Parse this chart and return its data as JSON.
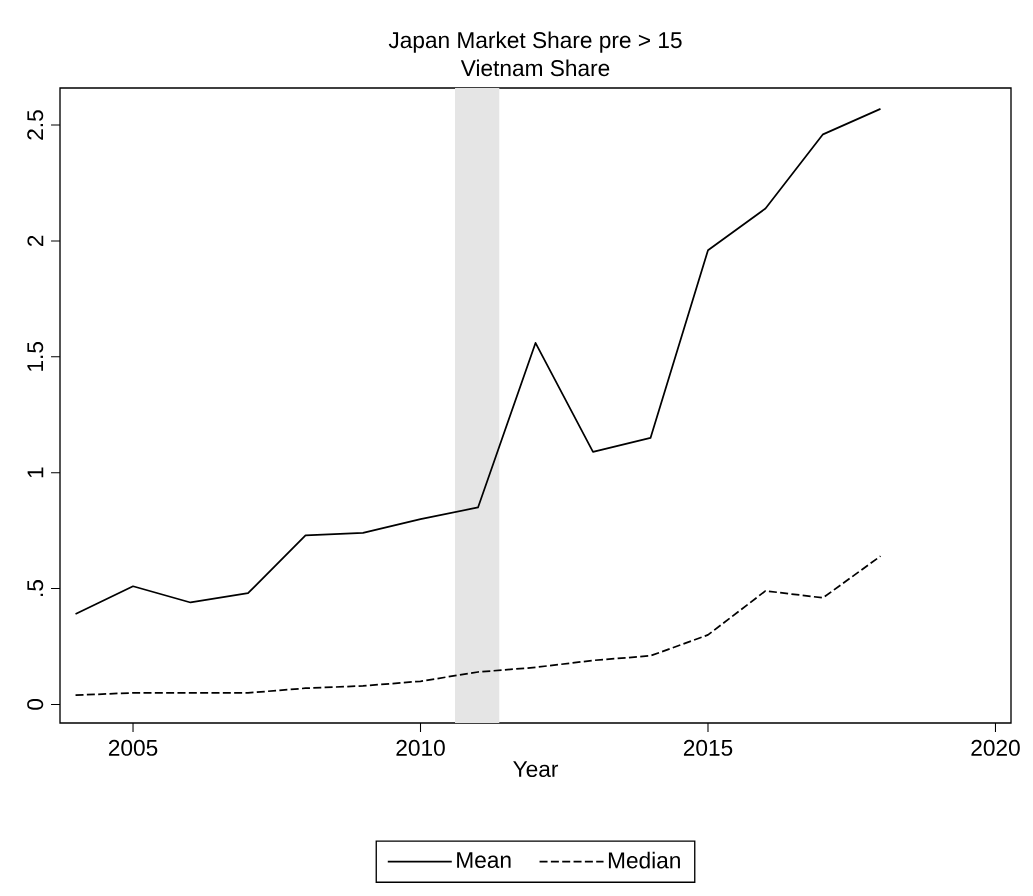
{
  "chart_data": {
    "type": "line",
    "title": "Japan Market Share pre > 15",
    "subtitle": "Vietnam Share",
    "xlabel": "Year",
    "x": [
      2004,
      2005,
      2006,
      2007,
      2008,
      2009,
      2010,
      2011,
      2012,
      2013,
      2014,
      2015,
      2016,
      2017,
      2018
    ],
    "series": [
      {
        "name": "Mean",
        "color": "#000000",
        "line_style": "solid",
        "values": [
          0.39,
          0.51,
          0.44,
          0.48,
          0.73,
          0.74,
          0.8,
          0.85,
          1.56,
          1.09,
          1.15,
          1.96,
          2.14,
          2.46,
          2.57
        ]
      },
      {
        "name": "Median",
        "color": "#000000",
        "line_style": "dashed",
        "values": [
          0.04,
          0.05,
          0.05,
          0.05,
          0.07,
          0.08,
          0.1,
          0.14,
          0.16,
          0.19,
          0.21,
          0.3,
          0.49,
          0.46,
          0.64
        ]
      }
    ],
    "xlim": [
      2003.73,
      2020.27
    ],
    "ylim": [
      -0.08,
      2.66
    ],
    "xticks": [
      2005,
      2010,
      2015,
      2020
    ],
    "yticks": [
      0,
      {
        "value": 0.5,
        "label": ".5"
      },
      1,
      1.5,
      2,
      2.5
    ],
    "bands": [
      {
        "axis": "x",
        "from": 2010.6,
        "to": 2011.37,
        "color": "#e5e5e5"
      }
    ],
    "grid": false,
    "legend": "bottom"
  }
}
